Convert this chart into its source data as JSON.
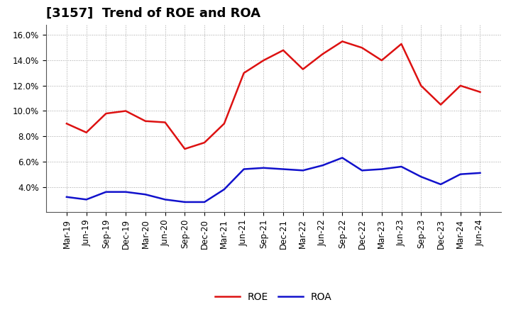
{
  "title": "[3157]  Trend of ROE and ROA",
  "ylim": [
    0.02,
    0.168
  ],
  "yticks": [
    0.04,
    0.06,
    0.08,
    0.1,
    0.12,
    0.14,
    0.16
  ],
  "ytick_labels": [
    "4.0%",
    "6.0%",
    "8.0%",
    "10.0%",
    "12.0%",
    "14.0%",
    "16.0%"
  ],
  "dates": [
    "Mar-19",
    "Jun-19",
    "Sep-19",
    "Dec-19",
    "Mar-20",
    "Jun-20",
    "Sep-20",
    "Dec-20",
    "Mar-21",
    "Jun-21",
    "Sep-21",
    "Dec-21",
    "Mar-22",
    "Jun-22",
    "Sep-22",
    "Dec-22",
    "Mar-23",
    "Jun-23",
    "Sep-23",
    "Dec-23",
    "Mar-24",
    "Jun-24"
  ],
  "roe": [
    0.09,
    0.083,
    0.098,
    0.1,
    0.092,
    0.091,
    0.07,
    0.075,
    0.09,
    0.13,
    0.14,
    0.148,
    0.133,
    0.145,
    0.155,
    0.15,
    0.14,
    0.153,
    0.12,
    0.105,
    0.12,
    0.115
  ],
  "roa": [
    0.032,
    0.03,
    0.036,
    0.036,
    0.034,
    0.03,
    0.028,
    0.028,
    0.038,
    0.054,
    0.055,
    0.054,
    0.053,
    0.057,
    0.063,
    0.053,
    0.054,
    0.056,
    0.048,
    0.042,
    0.05,
    0.051
  ],
  "roe_color": "#dd1111",
  "roa_color": "#1111cc",
  "background_color": "#ffffff",
  "grid_color": "#999999",
  "title_fontsize": 13,
  "tick_fontsize": 8.5,
  "legend_fontsize": 10,
  "legend_labels": [
    "ROE",
    "ROA"
  ]
}
